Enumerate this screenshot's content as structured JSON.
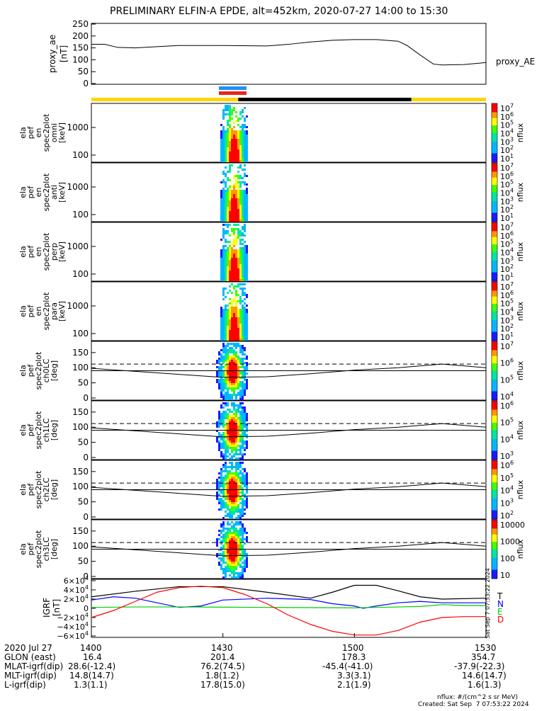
{
  "title": "PRELIMINARY ELFIN-A EPDE, alt=452km, 2020-07-27 14:00 to 15:30",
  "colors": {
    "yellow": "#ffd400",
    "black": "#000000",
    "blue": "#1e90ff",
    "red": "#e8261c"
  },
  "chart_data": [
    {
      "type": "line",
      "ylabel": [
        "proxy_ae",
        "[nT]"
      ],
      "yticks": [
        "250",
        "200",
        "150",
        "100",
        "50",
        "0"
      ],
      "ylim": [
        0,
        250
      ],
      "series": [
        {
          "name": "proxy_AE",
          "x": [
            0,
            3,
            6,
            10,
            15,
            20,
            30,
            40,
            45,
            50,
            55,
            60,
            65,
            70,
            72,
            75,
            78,
            80,
            85,
            90
          ],
          "y": [
            165,
            165,
            152,
            150,
            155,
            160,
            160,
            158,
            165,
            175,
            182,
            185,
            185,
            178,
            160,
            120,
            82,
            78,
            80,
            88
          ]
        }
      ]
    },
    {
      "type": "heatmap",
      "ylabel": [
        "ela",
        "pef",
        "en",
        "spec2plot",
        "omni",
        "[keV]"
      ],
      "yticks": [
        "1000",
        "100"
      ],
      "colorbar": {
        "label": "nflux",
        "ticks": [
          "10^7",
          "10^6",
          "10^5",
          "10^4",
          "10^3",
          "10^2",
          "10^1"
        ]
      }
    },
    {
      "type": "heatmap",
      "ylabel": [
        "ela",
        "pef",
        "en",
        "spec2plot",
        "anti",
        "[keV]"
      ],
      "yticks": [
        "1000",
        "100"
      ],
      "colorbar": {
        "label": "nflux",
        "ticks": [
          "10^7",
          "10^6",
          "10^5",
          "10^4",
          "10^3",
          "10^2",
          "10^1"
        ]
      }
    },
    {
      "type": "heatmap",
      "ylabel": [
        "ela",
        "pef",
        "en",
        "spec2plot",
        "perp",
        "[keV]"
      ],
      "yticks": [
        "1000",
        "100"
      ],
      "colorbar": {
        "label": "nflux",
        "ticks": [
          "10^7",
          "10^6",
          "10^5",
          "10^4",
          "10^3",
          "10^2",
          "10^1"
        ]
      }
    },
    {
      "type": "heatmap",
      "ylabel": [
        "ela",
        "pef",
        "en",
        "spec2plot",
        "para",
        "[keV]"
      ],
      "yticks": [
        "1000",
        "100"
      ],
      "colorbar": {
        "label": "nflux",
        "ticks": [
          "10^7",
          "10^6",
          "10^5",
          "10^4",
          "10^3",
          "10^2",
          "10^1"
        ]
      }
    },
    {
      "type": "heatmap",
      "ylabel": [
        "ela",
        "pef",
        "spec2plot",
        "ch0LC",
        "[deg]"
      ],
      "yticks": [
        "150",
        "100",
        "50",
        "0"
      ],
      "ylim": [
        0,
        180
      ],
      "colorbar": {
        "label": "nflux",
        "ticks": [
          "10^7",
          "10^6",
          "10^5",
          "10^4"
        ]
      }
    },
    {
      "type": "heatmap",
      "ylabel": [
        "ela",
        "pef",
        "spec2plot",
        "ch1LC",
        "[deg]"
      ],
      "yticks": [
        "150",
        "100",
        "50",
        "0"
      ],
      "ylim": [
        0,
        180
      ],
      "colorbar": {
        "label": "nflux",
        "ticks": [
          "10^6",
          "10^5",
          "10^4",
          "10^3"
        ]
      }
    },
    {
      "type": "heatmap",
      "ylabel": [
        "ela",
        "pef",
        "spec2plot",
        "ch2LC",
        "[deg]"
      ],
      "yticks": [
        "150",
        "100",
        "50",
        "0"
      ],
      "ylim": [
        0,
        180
      ],
      "colorbar": {
        "label": "nflux",
        "ticks": [
          "10^6",
          "10^5",
          "10^4",
          "10^3",
          "10^2"
        ]
      }
    },
    {
      "type": "heatmap",
      "ylabel": [
        "ela",
        "pef",
        "spec2plot",
        "ch3LC",
        "[deg]"
      ],
      "yticks": [
        "150",
        "100",
        "50",
        "0"
      ],
      "ylim": [
        0,
        180
      ],
      "colorbar": {
        "label": "nflux",
        "ticks": [
          "10000",
          "1000",
          "100",
          "10"
        ]
      }
    },
    {
      "type": "line",
      "ylabel": [
        "IGRF",
        "[nT]"
      ],
      "yticks": [
        "6×10^4",
        "4×10^4",
        "2×10^4",
        "0",
        "−2×10^4",
        "−4×10^4",
        "−6×10^4"
      ],
      "ylim": [
        -60000,
        60000
      ],
      "legend": [
        "T",
        "N",
        "E",
        "D"
      ],
      "series": [
        {
          "name": "T",
          "color": "#000000",
          "x": [
            0,
            10,
            20,
            30,
            40,
            50,
            55,
            60,
            65,
            70,
            75,
            80,
            90
          ],
          "y": [
            25000,
            37000,
            47000,
            47000,
            35000,
            22000,
            35000,
            50000,
            50000,
            38000,
            25000,
            20000,
            22000
          ]
        },
        {
          "name": "N",
          "color": "#0000ff",
          "x": [
            0,
            5,
            10,
            20,
            25,
            30,
            40,
            50,
            55,
            60,
            62,
            65,
            70,
            75,
            80,
            90
          ],
          "y": [
            18000,
            25000,
            22000,
            2000,
            5000,
            18000,
            22000,
            19000,
            10000,
            5000,
            0,
            5000,
            12000,
            15000,
            12000,
            12000
          ]
        },
        {
          "name": "E",
          "color": "#00cc00",
          "x": [
            0,
            10,
            20,
            30,
            40,
            50,
            60,
            70,
            75,
            80,
            85,
            90
          ],
          "y": [
            2000,
            3000,
            3000,
            2500,
            2000,
            1500,
            1000,
            3000,
            4000,
            8000,
            6000,
            6000
          ]
        },
        {
          "name": "D",
          "color": "#ff0000",
          "x": [
            0,
            5,
            10,
            15,
            20,
            25,
            30,
            35,
            40,
            45,
            50,
            55,
            60,
            65,
            70,
            75,
            80,
            85,
            90
          ],
          "y": [
            -20000,
            -5000,
            15000,
            35000,
            45000,
            48000,
            45000,
            30000,
            10000,
            -15000,
            -35000,
            -50000,
            -58000,
            -58000,
            -48000,
            -30000,
            -20000,
            -18000,
            -18000
          ]
        }
      ]
    }
  ],
  "annotations": {
    "labels": [
      "2020 Jul 27",
      "GLON (east)",
      "MLAT-igrf(dip)",
      "MLT-igrf(dip)",
      "L-igrf(dip)"
    ],
    "columns": [
      {
        "t": "1400",
        "rows": [
          "16.4",
          "28.6(-12.4)",
          "14.8(14.7)",
          "1.3(1.1)"
        ]
      },
      {
        "t": "1430",
        "rows": [
          "201.4",
          "76.2(74.5)",
          "1.8(1.2)",
          "17.8(15.0)"
        ]
      },
      {
        "t": "1500",
        "rows": [
          "178.3",
          "-45.4(-41.0)",
          "3.3(3.1)",
          "2.1(1.9)"
        ]
      },
      {
        "t": "1530",
        "rows": [
          "354.7",
          "-37.9(-22.3)",
          "14.6(14.7)",
          "1.6(1.3)"
        ]
      }
    ]
  },
  "footer": {
    "units": "nflux: #/(cm^2 s sr MeV)",
    "created": "Created: Sat Sep  7 07:53:22 2024",
    "side_stamp": "Sat Sep  7 07:53:22 2024"
  }
}
